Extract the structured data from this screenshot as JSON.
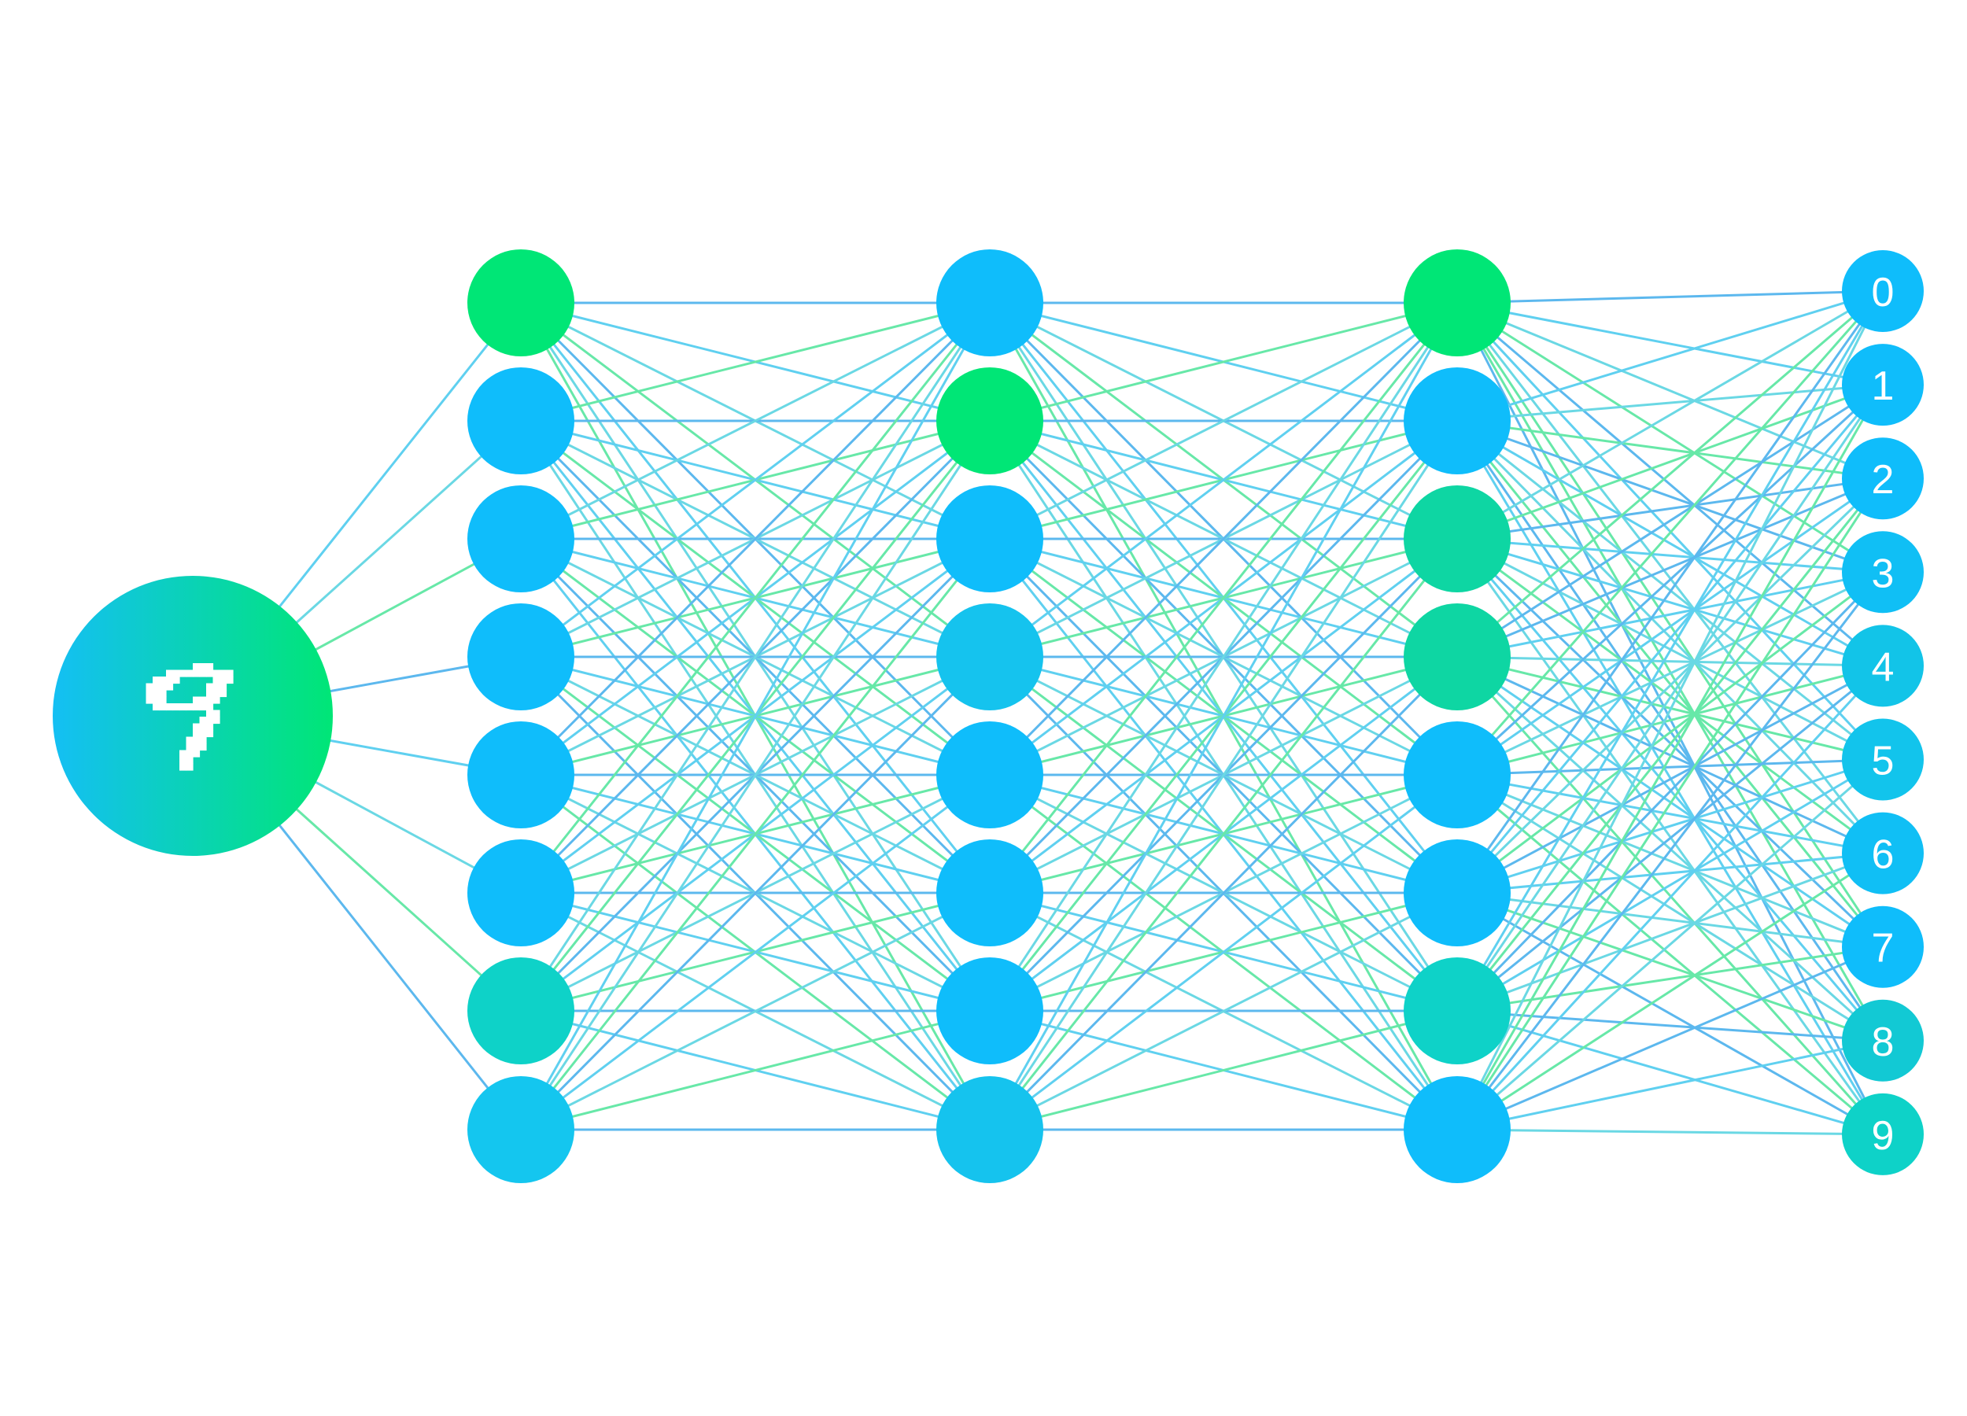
{
  "input": {
    "digit_icon": "handwritten-digit-9-pixel-icon",
    "gradient": [
      "#14bff4",
      "#00e676"
    ]
  },
  "hidden_layers": [
    {
      "name": "hidden-layer-1",
      "neurons": [
        "#00e676",
        "#0fbdfb",
        "#0fbdfb",
        "#0fbdfb",
        "#0fbdfb",
        "#0fbdfb",
        "#0ed2c8",
        "#14c6ef"
      ]
    },
    {
      "name": "hidden-layer-2",
      "neurons": [
        "#0fbdfb",
        "#00e676",
        "#0fbdfb",
        "#15c3ee",
        "#0fbdfb",
        "#0fbdfb",
        "#0fbdfb",
        "#15c3ee"
      ]
    },
    {
      "name": "hidden-layer-3",
      "neurons": [
        "#00e676",
        "#0fbdfb",
        "#0ed6a3",
        "#0ed6a3",
        "#0fbdfb",
        "#0fbdfb",
        "#0ed2c8",
        "#0fbdfb"
      ]
    }
  ],
  "output": {
    "labels": [
      "0",
      "1",
      "2",
      "3",
      "4",
      "5",
      "6",
      "7",
      "8",
      "9"
    ],
    "colors": [
      "#0fbdfb",
      "#0fbdfb",
      "#0fbdfb",
      "#10bff5",
      "#12c4e8",
      "#12c4ec",
      "#10bff5",
      "#0fbdfb",
      "#12c9d4",
      "#0ed2c8"
    ]
  },
  "edge_colors": [
    "#5fd0f0",
    "#5cb8ee",
    "#67e8a8",
    "#6ad8e4"
  ]
}
